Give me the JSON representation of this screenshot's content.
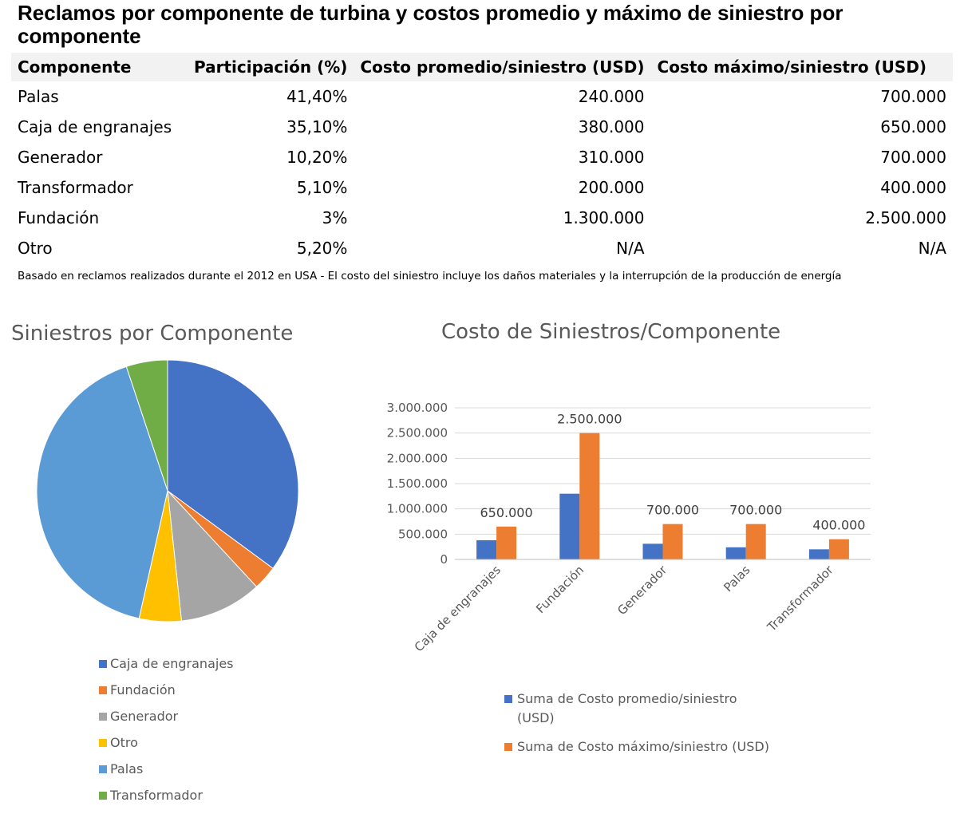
{
  "title": "Reclamos por componente de turbina y costos promedio y máximo de siniestro por componente",
  "table": {
    "headers": [
      "Componente",
      "Participación (%)",
      "Costo promedio/siniestro (USD)",
      "Costo máximo/siniestro (USD)"
    ],
    "rows": [
      [
        "Palas",
        "41,40%",
        "240.000",
        "700.000"
      ],
      [
        "Caja de engranajes",
        "35,10%",
        "380.000",
        "650.000"
      ],
      [
        "Generador",
        "10,20%",
        "310.000",
        "700.000"
      ],
      [
        "Transformador",
        "5,10%",
        "200.000",
        "400.000"
      ],
      [
        "Fundación",
        "3%",
        "1.300.000",
        "2.500.000"
      ],
      [
        "Otro",
        "5,20%",
        "N/A",
        "N/A"
      ]
    ]
  },
  "footnote": "Basado en reclamos realizados durante el 2012 en USA - El costo del siniestro incluye los daños materiales y la interrupción de la producción de energía",
  "chart_data": [
    {
      "type": "pie",
      "title": "Siniestros por Componente",
      "legend_position": "bottom",
      "categories": [
        "Caja de engranajes",
        "Fundación",
        "Generador",
        "Otro",
        "Palas",
        "Transformador"
      ],
      "values": [
        35.1,
        3,
        10.2,
        5.2,
        41.4,
        5.1
      ],
      "colors": [
        "#4472c4",
        "#ed7d31",
        "#a5a5a5",
        "#ffc000",
        "#5b9bd5",
        "#70ad47"
      ]
    },
    {
      "type": "bar",
      "title": "Costo de Siniestros/Componente",
      "legend_position": "bottom",
      "grid": true,
      "categories": [
        "Caja de engranajes",
        "Fundación",
        "Generador",
        "Palas",
        "Transformador"
      ],
      "series": [
        {
          "name": "Suma de Costo promedio/siniestro (USD)",
          "values": [
            380000,
            1300000,
            310000,
            240000,
            200000
          ],
          "color": "#4472c4"
        },
        {
          "name": "Suma de Costo máximo/siniestro (USD)",
          "values": [
            650000,
            2500000,
            700000,
            700000,
            400000
          ],
          "color": "#ed7d31"
        }
      ],
      "data_labels": {
        "series": 1,
        "labels": [
          "650.000",
          "2.500.000",
          "700.000",
          "700.000",
          "400.000"
        ]
      },
      "ylim": [
        0,
        3000000
      ],
      "yticks": [
        0,
        500000,
        1000000,
        1500000,
        2000000,
        2500000,
        3000000
      ],
      "ytick_labels": [
        "0",
        "500.000",
        "1.000.000",
        "1.500.000",
        "2.000.000",
        "2.500.000",
        "3.000.000"
      ]
    }
  ]
}
